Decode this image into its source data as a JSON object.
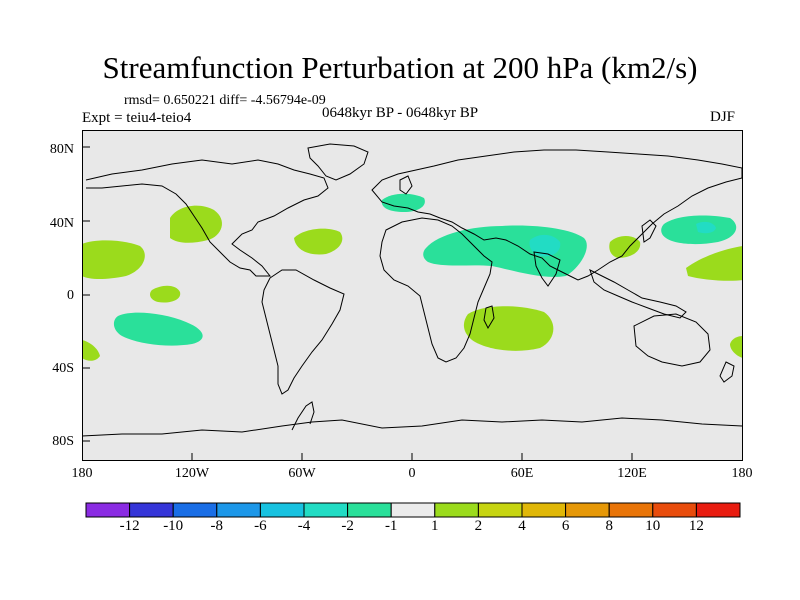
{
  "title": "Streamfunction Perturbation at 200 hPa (km2/s)",
  "stats_line": "rmsd= 0.650221  diff= -4.56794e-09",
  "experiment": "Expt = teiu4-teio4",
  "period": "0648kyr BP - 0648kyr BP",
  "season": "DJF",
  "axes": {
    "y_labels": [
      "80N",
      "40N",
      "0",
      "40S",
      "80S"
    ],
    "x_labels": [
      "180",
      "120W",
      "60W",
      "0",
      "60E",
      "120E",
      "180"
    ]
  },
  "colorbar": {
    "colors": [
      "#8a2be2",
      "#3535d8",
      "#1a6ee6",
      "#1c97e8",
      "#18c2e0",
      "#22dcc4",
      "#2ae09a",
      "#ebebeb",
      "#9bdb1c",
      "#c6d411",
      "#e0b708",
      "#e69808",
      "#e87408",
      "#e84c0c",
      "#e81c10"
    ],
    "levels": [
      "-12",
      "-10",
      "-8",
      "-6",
      "-4",
      "-2",
      "-1",
      "1",
      "2",
      "4",
      "6",
      "8",
      "10",
      "12"
    ]
  },
  "map_colors": {
    "background": "#e8e8e8",
    "neg_light": "#2ae09a",
    "neg_mid": "#22dcc4",
    "pos_light": "#9bdb1c",
    "coast": "#000000"
  }
}
